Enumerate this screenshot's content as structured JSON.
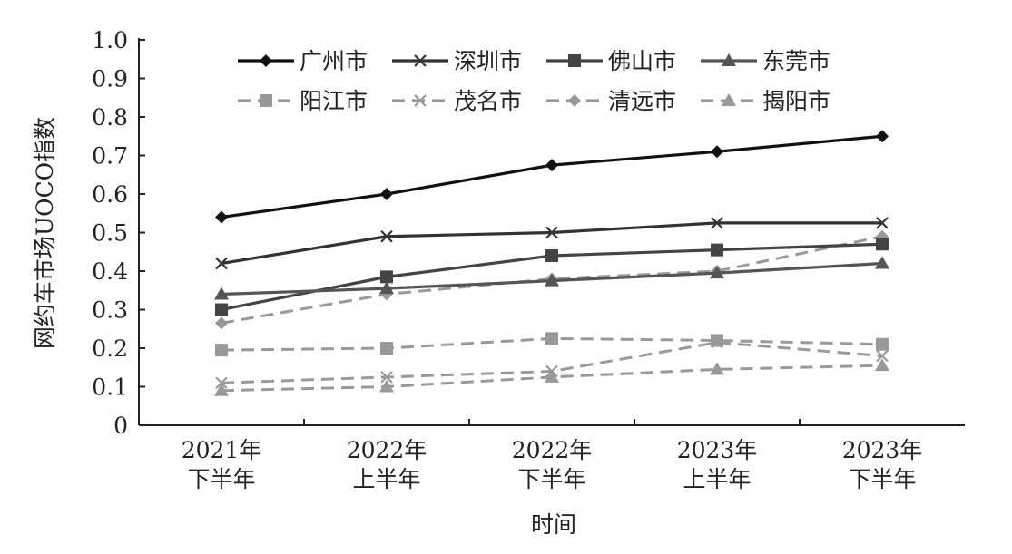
{
  "chart_data": {
    "type": "line",
    "xlabel": "时间",
    "ylabel": "网约车市场UOCO指数",
    "ylim": [
      0,
      1.0
    ],
    "yticks": [
      "0",
      "0.1",
      "0.2",
      "0.3",
      "0.4",
      "0.5",
      "0.6",
      "0.7",
      "0.8",
      "0.9",
      "1.0"
    ],
    "categories": [
      [
        "2021年",
        "下半年"
      ],
      [
        "2022年",
        "上半年"
      ],
      [
        "2022年",
        "下半年"
      ],
      [
        "2023年",
        "上半年"
      ],
      [
        "2023年",
        "下半年"
      ]
    ],
    "legend_position": "top",
    "grid": false,
    "series": [
      {
        "name": "广州市",
        "values": [
          0.54,
          0.6,
          0.675,
          0.71,
          0.75
        ],
        "color": "#111111",
        "dash": false,
        "marker": "diamond"
      },
      {
        "name": "深圳市",
        "values": [
          0.42,
          0.49,
          0.5,
          0.525,
          0.525
        ],
        "color": "#333333",
        "dash": false,
        "marker": "x"
      },
      {
        "name": "佛山市",
        "values": [
          0.3,
          0.385,
          0.44,
          0.455,
          0.47
        ],
        "color": "#444444",
        "dash": false,
        "marker": "square"
      },
      {
        "name": "东莞市",
        "values": [
          0.34,
          0.355,
          0.375,
          0.395,
          0.42
        ],
        "color": "#555555",
        "dash": false,
        "marker": "triangle"
      },
      {
        "name": "阳江市",
        "values": [
          0.195,
          0.2,
          0.225,
          0.22,
          0.21
        ],
        "color": "#999999",
        "dash": true,
        "marker": "square"
      },
      {
        "name": "茂名市",
        "values": [
          0.11,
          0.125,
          0.14,
          0.215,
          0.18
        ],
        "color": "#999999",
        "dash": true,
        "marker": "x"
      },
      {
        "name": "清远市",
        "values": [
          0.265,
          0.34,
          0.38,
          0.4,
          0.49
        ],
        "color": "#999999",
        "dash": true,
        "marker": "diamond"
      },
      {
        "name": "揭阳市",
        "values": [
          0.09,
          0.1,
          0.125,
          0.145,
          0.155
        ],
        "color": "#999999",
        "dash": true,
        "marker": "triangle"
      }
    ]
  }
}
